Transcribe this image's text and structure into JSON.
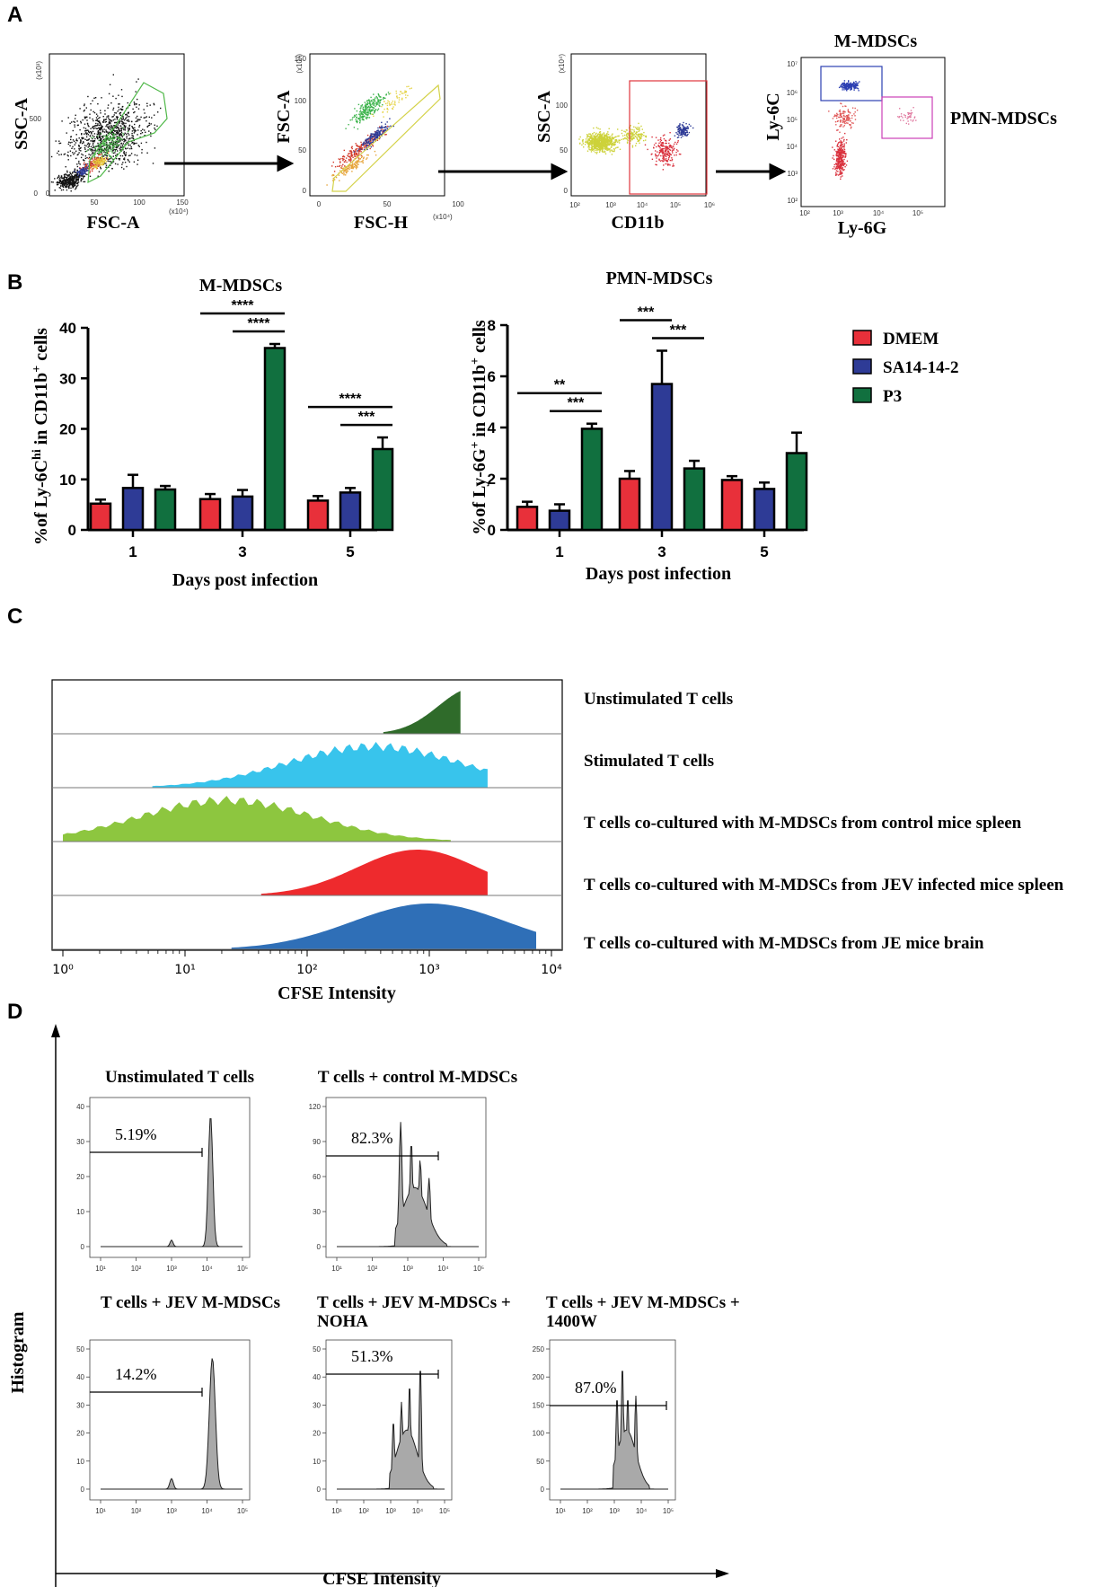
{
  "panels": {
    "A": "A",
    "B": "B",
    "C": "C",
    "D": "D"
  },
  "panel_a": {
    "plots": [
      {
        "xlabel": "FSC-A",
        "ylabel": "SSC-A",
        "x_scale": "(x10⁴)",
        "y_scale": "(x10³)",
        "x_ticks": [
          "0",
          "50",
          "100",
          "150"
        ],
        "y_ticks": [
          "0",
          "500"
        ]
      },
      {
        "xlabel": "FSC-H",
        "ylabel": "FSC-A",
        "x_scale": "(x10⁴)",
        "y_scale": "(x10⁴)",
        "x_ticks": [
          "0",
          "50",
          "100"
        ],
        "y_ticks": [
          "0",
          "50",
          "100",
          "150"
        ]
      },
      {
        "xlabel": "CD11b",
        "ylabel": "SSC-A",
        "y_scale": "(x10⁴)",
        "x_ticks": [
          "10²",
          "10³",
          "10⁴",
          "10⁵",
          "10⁶"
        ],
        "y_ticks": [
          "0",
          "50",
          "100"
        ]
      },
      {
        "xlabel": "Ly-6G",
        "ylabel": "Ly-6C",
        "title": "M-MDSCs",
        "side_label": "PMN-MDSCs",
        "x_ticks": [
          "10²",
          "10³",
          "10⁴",
          "10⁵"
        ],
        "y_ticks": [
          "10²",
          "10³",
          "10⁴",
          "10⁵",
          "10⁶",
          "10⁷"
        ]
      }
    ]
  },
  "colors": {
    "dmem": "#e8303a",
    "sa14": "#2e3b96",
    "p3": "#11703f",
    "unstim": "#2f6b2a",
    "stim": "#38c4ec",
    "control": "#8dc63f",
    "jev": "#ee2a2d",
    "brain": "#2f6fb7",
    "hist": "#a9a9a9"
  },
  "legend": [
    "DMEM",
    "SA14-14-2",
    "P3"
  ],
  "chart_data": [
    {
      "type": "bar",
      "title": "M-MDSCs",
      "xlabel": "Days post infection",
      "ylabel": "%of Ly-6C^hi in CD11b^+ cells",
      "ylabel_parts": [
        "%of Ly-6C",
        "hi",
        " in CD11b",
        "+",
        " cells"
      ],
      "categories": [
        "1",
        "3",
        "5"
      ],
      "series": [
        {
          "name": "DMEM",
          "values": [
            5.2,
            6.1,
            5.8
          ],
          "errors": [
            0.8,
            1.0,
            0.9
          ]
        },
        {
          "name": "SA14-14-2",
          "values": [
            8.3,
            6.6,
            7.4
          ],
          "errors": [
            2.6,
            1.3,
            0.9
          ]
        },
        {
          "name": "P3",
          "values": [
            8.0,
            36.0,
            16.0
          ],
          "errors": [
            0.7,
            0.8,
            2.3
          ]
        }
      ],
      "ylim": [
        0,
        40
      ],
      "yticks": [
        "0",
        "10",
        "20",
        "30",
        "40"
      ],
      "significance": [
        {
          "day": "3",
          "from": "DMEM",
          "to": "P3",
          "label": "****"
        },
        {
          "day": "3",
          "from": "SA14-14-2",
          "to": "P3",
          "label": "****"
        },
        {
          "day": "5",
          "from": "DMEM",
          "to": "P3",
          "label": "****"
        },
        {
          "day": "5",
          "from": "SA14-14-2",
          "to": "P3",
          "label": "***"
        }
      ]
    },
    {
      "type": "bar",
      "title": "PMN-MDSCs",
      "xlabel": "Days post infection",
      "ylabel": "%of Ly-6G^+ in CD11b^+ cells",
      "ylabel_parts": [
        "%of Ly-6G",
        "+",
        " in CD11b",
        "+",
        " cells"
      ],
      "categories": [
        "1",
        "3",
        "5"
      ],
      "series": [
        {
          "name": "DMEM",
          "values": [
            0.9,
            2.0,
            1.95
          ],
          "errors": [
            0.2,
            0.3,
            0.15
          ]
        },
        {
          "name": "SA14-14-2",
          "values": [
            0.75,
            5.7,
            1.6
          ],
          "errors": [
            0.25,
            1.3,
            0.25
          ]
        },
        {
          "name": "P3",
          "values": [
            3.95,
            2.4,
            3.0
          ],
          "errors": [
            0.2,
            0.3,
            0.8
          ]
        }
      ],
      "ylim": [
        0,
        8
      ],
      "yticks": [
        "0",
        "2",
        "4",
        "6",
        "8"
      ],
      "significance": [
        {
          "day": "1",
          "from": "DMEM",
          "to": "P3",
          "label": "**"
        },
        {
          "day": "1",
          "from": "SA14-14-2",
          "to": "P3",
          "label": "***"
        },
        {
          "day": "3",
          "from": "DMEM",
          "to": "SA14-14-2",
          "label": "***"
        },
        {
          "day": "3",
          "from": "SA14-14-2",
          "to": "P3",
          "label": "***"
        }
      ]
    },
    {
      "type": "histogram",
      "xlabel": "CFSE Intensity",
      "x_scale": "log10",
      "xlim": [
        1,
        10000
      ],
      "xticks": [
        "10⁰",
        "10¹",
        "10²",
        "10³",
        "10⁴"
      ],
      "series": [
        {
          "name": "Unstimulated T cells",
          "range": [
            700,
            1200
          ],
          "peak": 2300
        },
        {
          "name": "Stimulated T cells",
          "range": [
            9,
            2000
          ],
          "peak": 350
        },
        {
          "name": "T cells co-cultured with M-MDSCs from control mice spleen",
          "range": [
            1,
            1000
          ],
          "peak": 22
        },
        {
          "name": "T cells co-cultured with M-MDSCs from JEV infected mice spleen",
          "range": [
            70,
            2000
          ],
          "peak": 800
        },
        {
          "name": "T cells co-cultured with M-MDSCs from JE mice brain",
          "range": [
            40,
            5000
          ],
          "peak": 1000
        }
      ]
    },
    {
      "type": "histogram",
      "xlabel": "CFSE Intensity",
      "ylabel": "Histogram",
      "x_scale": "log10",
      "xticks": [
        "10¹",
        "10²",
        "10³",
        "10⁴",
        "10⁵"
      ],
      "plots": [
        {
          "title": "Unstimulated T cells",
          "gate": "5.19%",
          "yticks": [
            "0",
            "10",
            "20",
            "30",
            "40"
          ]
        },
        {
          "title": "T cells + control M-MDSCs",
          "gate": "82.3%",
          "yticks": [
            "0",
            "30",
            "60",
            "90",
            "120"
          ]
        },
        {
          "title": "T cells + JEV M-MDSCs",
          "gate": "14.2%",
          "yticks": [
            "0",
            "10",
            "20",
            "30",
            "40",
            "50"
          ]
        },
        {
          "title": "T cells + JEV M-MDSCs + NOHA",
          "title_lines": [
            "T cells + JEV M-MDSCs +",
            "NOHA"
          ],
          "gate": "51.3%",
          "yticks": [
            "0",
            "10",
            "20",
            "30",
            "40",
            "50"
          ]
        },
        {
          "title": "T cells + JEV M-MDSCs + 1400W",
          "title_lines": [
            "T cells + JEV M-MDSCs +",
            "1400W"
          ],
          "gate": "87.0%",
          "yticks": [
            "0",
            "50",
            "100",
            "150",
            "200",
            "250"
          ]
        }
      ]
    }
  ]
}
